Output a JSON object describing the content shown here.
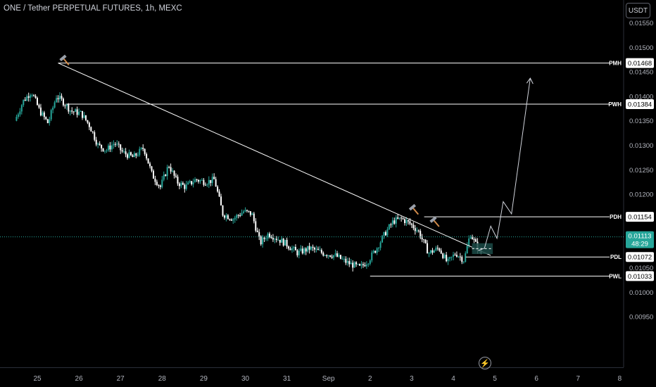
{
  "header": {
    "title": "ONE / Tether PERPETUAL FUTURES, 1h, MEXC",
    "currency_label": "USDT"
  },
  "colors": {
    "background": "#000000",
    "up_candle": "#26a69a",
    "down_candle": "#ffffff",
    "level_line": "#ffffff",
    "last_price": "#26a69a",
    "axis_text": "#b2b5be",
    "zone": "#1b4a46"
  },
  "icons": {
    "flash": "lightning-icon",
    "marker": "hammer-icon"
  },
  "chart_data": {
    "type": "candlestick",
    "y_ticks": [
      "0.01550",
      "0.01500",
      "0.01450",
      "0.01400",
      "0.01350",
      "0.01300",
      "0.01250",
      "0.01200",
      "0.01050",
      "0.01000",
      "0.00950"
    ],
    "ylim": [
      0.00915,
      0.01585
    ],
    "x_ticks": [
      "25",
      "26",
      "27",
      "28",
      "29",
      "30",
      "31",
      "Sep",
      "2",
      "3",
      "4",
      "5",
      "6",
      "7",
      "8"
    ],
    "levels": [
      {
        "tag": "PWH",
        "value": 0.01384,
        "label": "0.01384"
      },
      {
        "tag": "PWL",
        "value": 0.01033,
        "label": "0.01033"
      },
      {
        "tag": "PDH",
        "value": 0.01154,
        "label": "0.01154"
      },
      {
        "tag": "PDL",
        "value": 0.01072,
        "label": "0.01072"
      },
      {
        "tag": "PMH",
        "value": 0.01468,
        "label": "0.01468"
      }
    ],
    "last_price": {
      "value": 0.01113,
      "label": "0.01113",
      "countdown": "48:29"
    },
    "price_path": [
      [
        24.5,
        0.0135
      ],
      [
        24.7,
        0.0139
      ],
      [
        24.9,
        0.0141
      ],
      [
        25.1,
        0.0137
      ],
      [
        25.3,
        0.01345
      ],
      [
        25.5,
        0.014
      ],
      [
        25.65,
        0.0139
      ],
      [
        25.85,
        0.0137
      ],
      [
        26.1,
        0.01365
      ],
      [
        26.3,
        0.0134
      ],
      [
        26.5,
        0.013
      ],
      [
        26.7,
        0.0129
      ],
      [
        26.9,
        0.01305
      ],
      [
        27.1,
        0.01285
      ],
      [
        27.35,
        0.01275
      ],
      [
        27.6,
        0.01295
      ],
      [
        27.8,
        0.0124
      ],
      [
        28.0,
        0.01215
      ],
      [
        28.2,
        0.0126
      ],
      [
        28.4,
        0.01225
      ],
      [
        28.6,
        0.01215
      ],
      [
        28.85,
        0.0123
      ],
      [
        29.1,
        0.01225
      ],
      [
        29.3,
        0.0123
      ],
      [
        29.5,
        0.0116
      ],
      [
        29.75,
        0.0115
      ],
      [
        30.0,
        0.01165
      ],
      [
        30.2,
        0.0116
      ],
      [
        30.4,
        0.011
      ],
      [
        30.6,
        0.0112
      ],
      [
        30.8,
        0.0111
      ],
      [
        31.0,
        0.011
      ],
      [
        31.3,
        0.0108
      ],
      [
        31.6,
        0.0109
      ],
      [
        31.9,
        0.0108
      ],
      [
        32.2,
        0.01075
      ],
      [
        32.5,
        0.0106
      ],
      [
        32.8,
        0.0105
      ],
      [
        33.0,
        0.01065
      ],
      [
        33.2,
        0.0109
      ],
      [
        33.4,
        0.0112
      ],
      [
        33.6,
        0.01145
      ],
      [
        33.8,
        0.0115
      ],
      [
        34.0,
        0.0114
      ],
      [
        34.2,
        0.01125
      ],
      [
        34.45,
        0.0108
      ],
      [
        34.7,
        0.0109
      ],
      [
        34.9,
        0.0106
      ],
      [
        35.1,
        0.0108
      ],
      [
        35.3,
        0.01065
      ],
      [
        35.45,
        0.0112
      ],
      [
        35.6,
        0.01095
      ],
      [
        35.7,
        0.0108
      ]
    ],
    "forecast_path": [
      [
        35.6,
        0.01085
      ],
      [
        35.75,
        0.0109
      ],
      [
        35.9,
        0.01135
      ],
      [
        36.05,
        0.0111
      ],
      [
        36.2,
        0.01185
      ],
      [
        36.4,
        0.0116
      ],
      [
        36.85,
        0.01437
      ]
    ],
    "trendline": {
      "from": [
        25.5,
        0.01468
      ],
      "to": [
        35.9,
        0.01075
      ]
    },
    "zone": {
      "x0": 35.45,
      "x1": 35.95,
      "y0": 0.01078,
      "y1": 0.011
    },
    "markers": [
      [
        25.65,
        0.01475
      ],
      [
        34.05,
        0.0117
      ],
      [
        34.55,
        0.01145
      ]
    ],
    "flash_button": "⚡"
  }
}
